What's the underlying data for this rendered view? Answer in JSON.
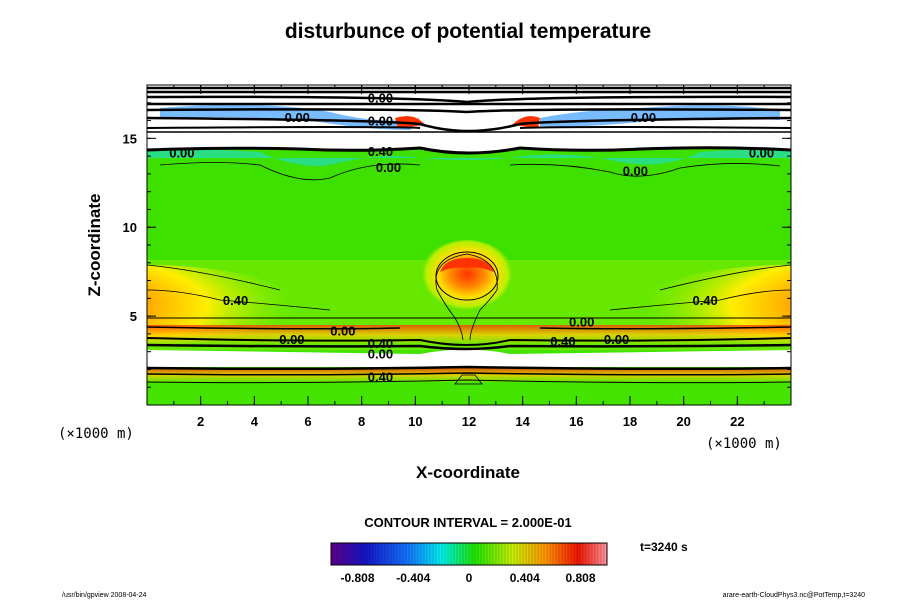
{
  "chart_data": {
    "type": "contour",
    "title": "disturbunce of potential temperature",
    "xlabel": "X-coordinate",
    "ylabel": "Z-coordinate",
    "x_unit": "(×1000 m)",
    "y_unit": "(×1000 m)",
    "xlim": [
      0,
      24
    ],
    "ylim": [
      0,
      18
    ],
    "xticks": [
      2,
      4,
      6,
      8,
      10,
      12,
      14,
      16,
      18,
      20,
      22
    ],
    "yticks": [
      5,
      10,
      15
    ],
    "contour_interval_label": "CONTOUR INTERVAL = 2.000E-01",
    "time_label": "t=3240 s",
    "colorbar": {
      "range": [
        -1.0,
        1.0
      ],
      "ticks": [
        "-0.808",
        "-0.404",
        "0",
        "0.404",
        "0.808"
      ],
      "tick_values": [
        -0.808,
        -0.404,
        0,
        0.404,
        0.808
      ]
    },
    "contour_labels": [
      {
        "text": "0.40",
        "x": 3.3,
        "y": 5.9
      },
      {
        "text": "0.40",
        "x": 20.8,
        "y": 5.9
      },
      {
        "text": "0.00",
        "x": 1.3,
        "y": 14.2
      },
      {
        "text": "0.00",
        "x": 9.0,
        "y": 13.4
      },
      {
        "text": "0.00",
        "x": 18.2,
        "y": 13.2
      },
      {
        "text": "0.00",
        "x": 22.9,
        "y": 14.2
      },
      {
        "text": "0.40",
        "x": 8.7,
        "y": 14.3
      },
      {
        "text": "0.00",
        "x": 16.2,
        "y": 4.7
      },
      {
        "text": "0.00",
        "x": 5.4,
        "y": 3.7
      },
      {
        "text": "0.40",
        "x": 15.5,
        "y": 3.6
      },
      {
        "text": "0.00",
        "x": 7.3,
        "y": 4.2
      },
      {
        "text": "0.40",
        "x": 8.7,
        "y": 3.5
      },
      {
        "text": "0.00",
        "x": 8.7,
        "y": 2.9
      },
      {
        "text": "0.40",
        "x": 8.7,
        "y": 1.6
      },
      {
        "text": "0.00",
        "x": 5.6,
        "y": 16.2
      },
      {
        "text": "0.00",
        "x": 18.5,
        "y": 16.2
      },
      {
        "text": "0.00",
        "x": 8.7,
        "y": 16.0
      },
      {
        "text": "0.00",
        "x": 8.7,
        "y": 17.3
      },
      {
        "text": "0.00",
        "x": 17.5,
        "y": 3.7
      }
    ],
    "grid": false
  },
  "footer": {
    "left": "/usr/bin/gpview 2008-04-24",
    "right": "arare-earth-CloudPhys3.nc@PotTemp,t=3240"
  }
}
